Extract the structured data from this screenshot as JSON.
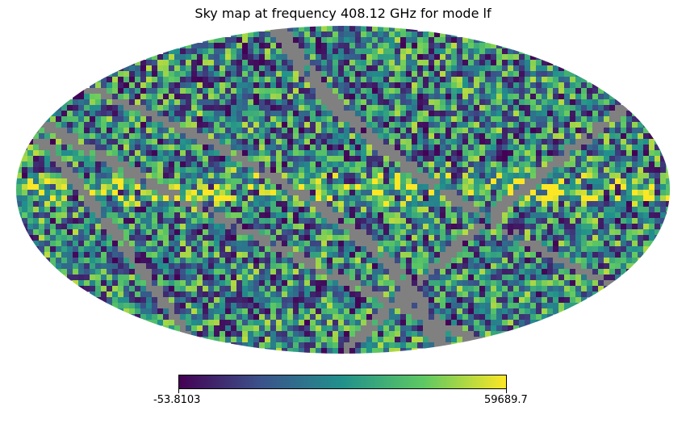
{
  "chart_data": {
    "type": "heatmap",
    "projection": "mollweide",
    "title": "Sky map at frequency 408.12 GHz for mode lf",
    "colormap": "viridis",
    "colormap_stops": [
      "#440154",
      "#3b528b",
      "#21918c",
      "#5ec962",
      "#fde725"
    ],
    "missing_value_color": "#808080",
    "background_color": "#ffffff",
    "colorbar": {
      "orientation": "horizontal",
      "min": -53.8103,
      "max": 59689.7,
      "min_label": "-53.8103",
      "max_label": "59689.7"
    },
    "features": {
      "galactic_plane": "bright yellow band along the equator",
      "masked_scan_stripes": "grey curved bands crossing the map"
    }
  }
}
